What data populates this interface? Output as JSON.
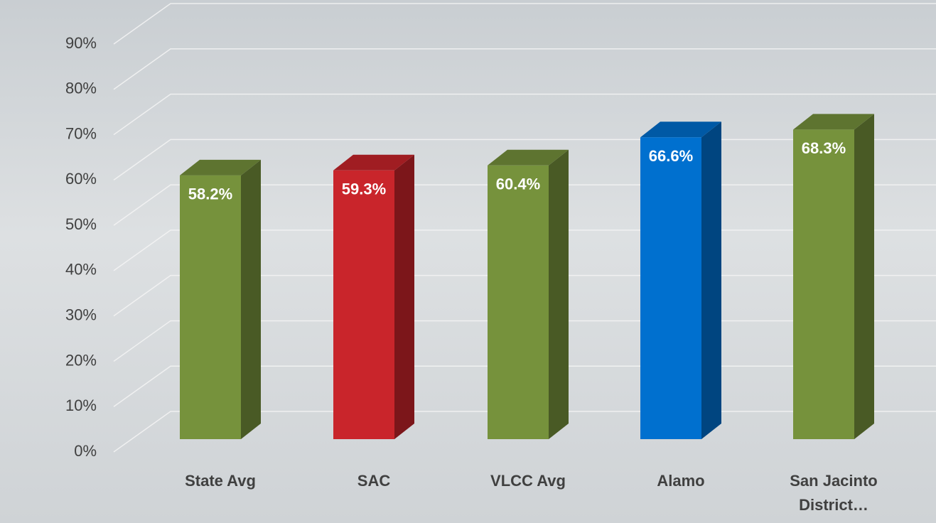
{
  "chart_data": {
    "type": "bar3d",
    "categories": [
      "State Avg",
      "SAC",
      "VLCC Avg",
      "Alamo",
      "San Jacinto District…"
    ],
    "values": [
      58.2,
      59.3,
      60.4,
      66.6,
      68.3
    ],
    "value_labels": [
      "58.2%",
      "59.3%",
      "60.4%",
      "66.6%",
      "68.3%"
    ],
    "colors": [
      "#76923c",
      "#c9252b",
      "#76923c",
      "#0070cf",
      "#76923c"
    ],
    "ylim": [
      0,
      90
    ],
    "yticks": [
      {
        "value": 0,
        "label": "0%"
      },
      {
        "value": 10,
        "label": "10%"
      },
      {
        "value": 20,
        "label": "20%"
      },
      {
        "value": 30,
        "label": "30%"
      },
      {
        "value": 40,
        "label": "40%"
      },
      {
        "value": 50,
        "label": "50%"
      },
      {
        "value": 60,
        "label": "60%"
      },
      {
        "value": 70,
        "label": "70%"
      },
      {
        "value": 80,
        "label": "80%"
      },
      {
        "value": 90,
        "label": "90%"
      }
    ],
    "grid": true
  }
}
